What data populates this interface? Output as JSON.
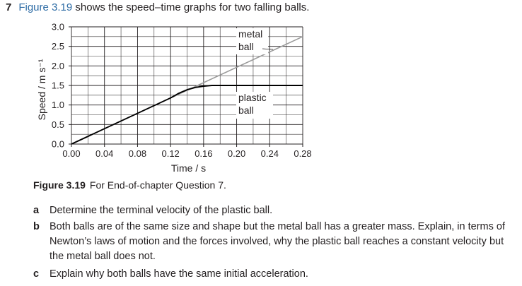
{
  "question": {
    "number": "7",
    "figure_ref": "Figure 3.19",
    "intro": " shows the speed–time graphs for two falling balls."
  },
  "figure": {
    "caption_label": "Figure 3.19",
    "caption_text": "For End-of-chapter Question 7."
  },
  "chart_data": {
    "type": "line",
    "xlabel": "Time / s",
    "ylabel": "Speed / m s⁻¹",
    "xlim": [
      0,
      0.28
    ],
    "ylim": [
      0,
      3.0
    ],
    "x_ticks": [
      "0.00",
      "0.04",
      "0.08",
      "0.12",
      "0.16",
      "0.20",
      "0.24",
      "0.28"
    ],
    "y_ticks": [
      "0.0",
      "0.5",
      "1.0",
      "1.5",
      "2.0",
      "2.5",
      "3.0"
    ],
    "grid": true,
    "series": [
      {
        "name": "metal ball",
        "color": "#9a9a9a",
        "label_lines": [
          "metal",
          "ball"
        ],
        "x": [
          0,
          0.28
        ],
        "y": [
          0,
          2.75
        ]
      },
      {
        "name": "plastic ball",
        "color": "#000000",
        "label_lines": [
          "plastic",
          "ball"
        ],
        "x": [
          0,
          0.12,
          0.13,
          0.14,
          0.15,
          0.16,
          0.17,
          0.28
        ],
        "y": [
          0,
          1.18,
          1.3,
          1.39,
          1.45,
          1.48,
          1.5,
          1.5
        ]
      }
    ]
  },
  "parts": [
    {
      "letter": "a",
      "text": "Determine the terminal velocity of the plastic ball."
    },
    {
      "letter": "b",
      "text": "Both balls are of the same size and shape but the metal ball has a greater mass. Explain, in terms of Newton’s laws of motion and the forces involved, why the plastic ball reaches a constant velocity but the metal ball does not."
    },
    {
      "letter": "c",
      "text": "Explain why both balls have the same initial acceleration."
    }
  ]
}
